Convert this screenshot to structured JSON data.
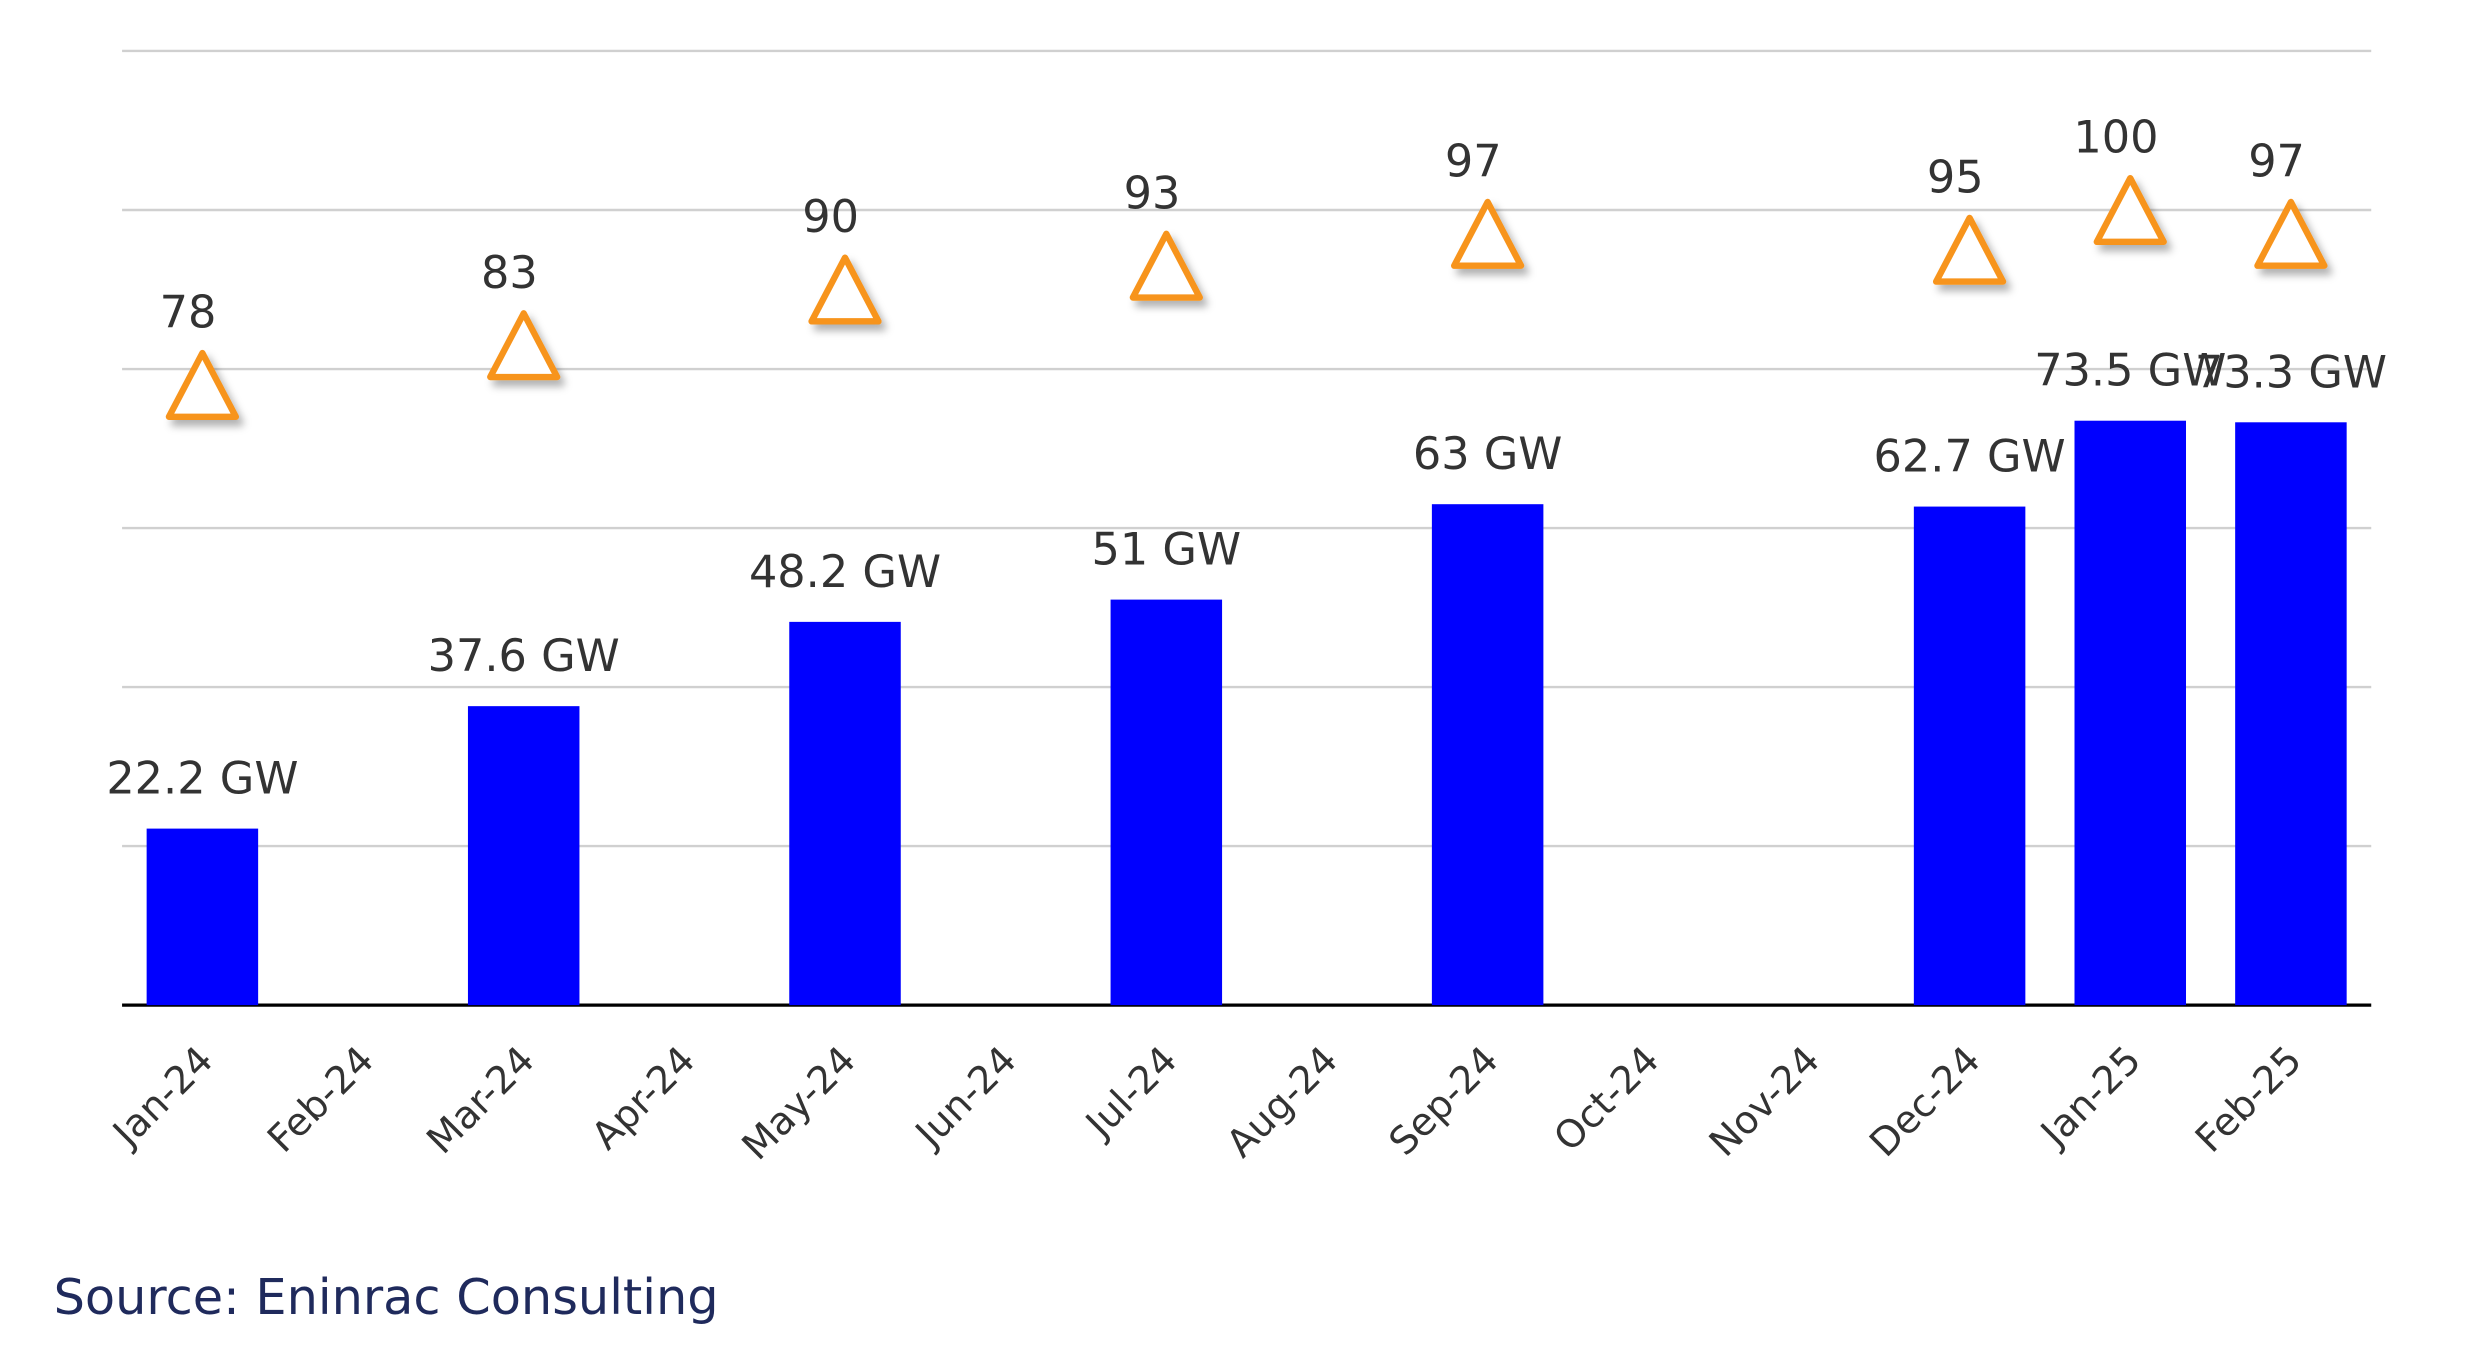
{
  "chart_data": {
    "type": "bar",
    "categories": [
      "Jan-24",
      "Feb-24",
      "Mar-24",
      "Apr-24",
      "May-24",
      "Jun-24",
      "Jul-24",
      "Aug-24",
      "Sep-24",
      "Oct-24",
      "Nov-24",
      "Dec-24",
      "Jan-25",
      "Feb-25"
    ],
    "series": [
      {
        "type": "bar",
        "values": [
          22.2,
          null,
          37.6,
          null,
          48.2,
          null,
          51,
          null,
          63,
          null,
          null,
          62.7,
          73.5,
          73.3
        ],
        "labels": [
          "22.2 GW",
          null,
          "37.6 GW",
          null,
          "48.2 GW",
          null,
          "51 GW",
          null,
          "63 GW",
          null,
          null,
          "62.7 GW",
          "73.5 GW",
          "73.3 GW"
        ],
        "color": "#0000FF"
      },
      {
        "type": "marker",
        "marker": "triangle-open",
        "values": [
          78,
          null,
          83,
          null,
          90,
          null,
          93,
          null,
          97,
          null,
          null,
          95,
          100,
          97
        ],
        "labels": [
          "78",
          null,
          "83",
          null,
          "90",
          null,
          "93",
          null,
          "97",
          null,
          null,
          "95",
          "100",
          "97"
        ],
        "color": "#F7941D"
      }
    ],
    "ylim": [
      0,
      120
    ],
    "grid": true,
    "y_axis_labels_shown": false,
    "source": "Source: Eninrac Consulting"
  }
}
